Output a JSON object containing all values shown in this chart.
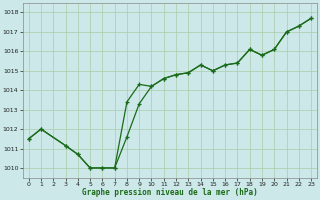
{
  "line1_x": [
    0,
    1,
    3,
    4,
    5,
    6,
    7,
    8,
    9,
    10,
    11,
    12,
    13,
    14,
    15,
    16,
    17,
    18,
    19,
    20,
    21,
    22,
    23
  ],
  "line1_y": [
    1011.5,
    1012.0,
    1011.15,
    1010.7,
    1010.0,
    1010.0,
    1010.0,
    1011.6,
    1013.3,
    1014.2,
    1014.6,
    1014.8,
    1014.9,
    1015.3,
    1015.0,
    1015.3,
    1015.4,
    1016.1,
    1015.8,
    1016.1,
    1017.0,
    1017.3,
    1017.7
  ],
  "line2_x": [
    0,
    1,
    3,
    4,
    5,
    6,
    7,
    8,
    9,
    10,
    11,
    12,
    13,
    14,
    15,
    16,
    17,
    18,
    19,
    20,
    21,
    22,
    23
  ],
  "line2_y": [
    1011.5,
    1012.0,
    1011.15,
    1010.7,
    1010.0,
    1010.0,
    1010.0,
    1013.4,
    1014.3,
    1014.2,
    1014.6,
    1014.8,
    1014.9,
    1015.3,
    1015.0,
    1015.3,
    1015.4,
    1016.1,
    1015.8,
    1016.1,
    1017.0,
    1017.3,
    1017.7
  ],
  "bg_color": "#cce8e8",
  "grid_color": "#aaccaa",
  "line_color": "#1a6b1a",
  "xlabel": "Graphe pression niveau de la mer (hPa)",
  "ylim": [
    1009.5,
    1018.5
  ],
  "xlim": [
    -0.5,
    23.5
  ],
  "yticks": [
    1010,
    1011,
    1012,
    1013,
    1014,
    1015,
    1016,
    1017,
    1018
  ],
  "xticks": [
    0,
    1,
    2,
    3,
    4,
    5,
    6,
    7,
    8,
    9,
    10,
    11,
    12,
    13,
    14,
    15,
    16,
    17,
    18,
    19,
    20,
    21,
    22,
    23
  ]
}
